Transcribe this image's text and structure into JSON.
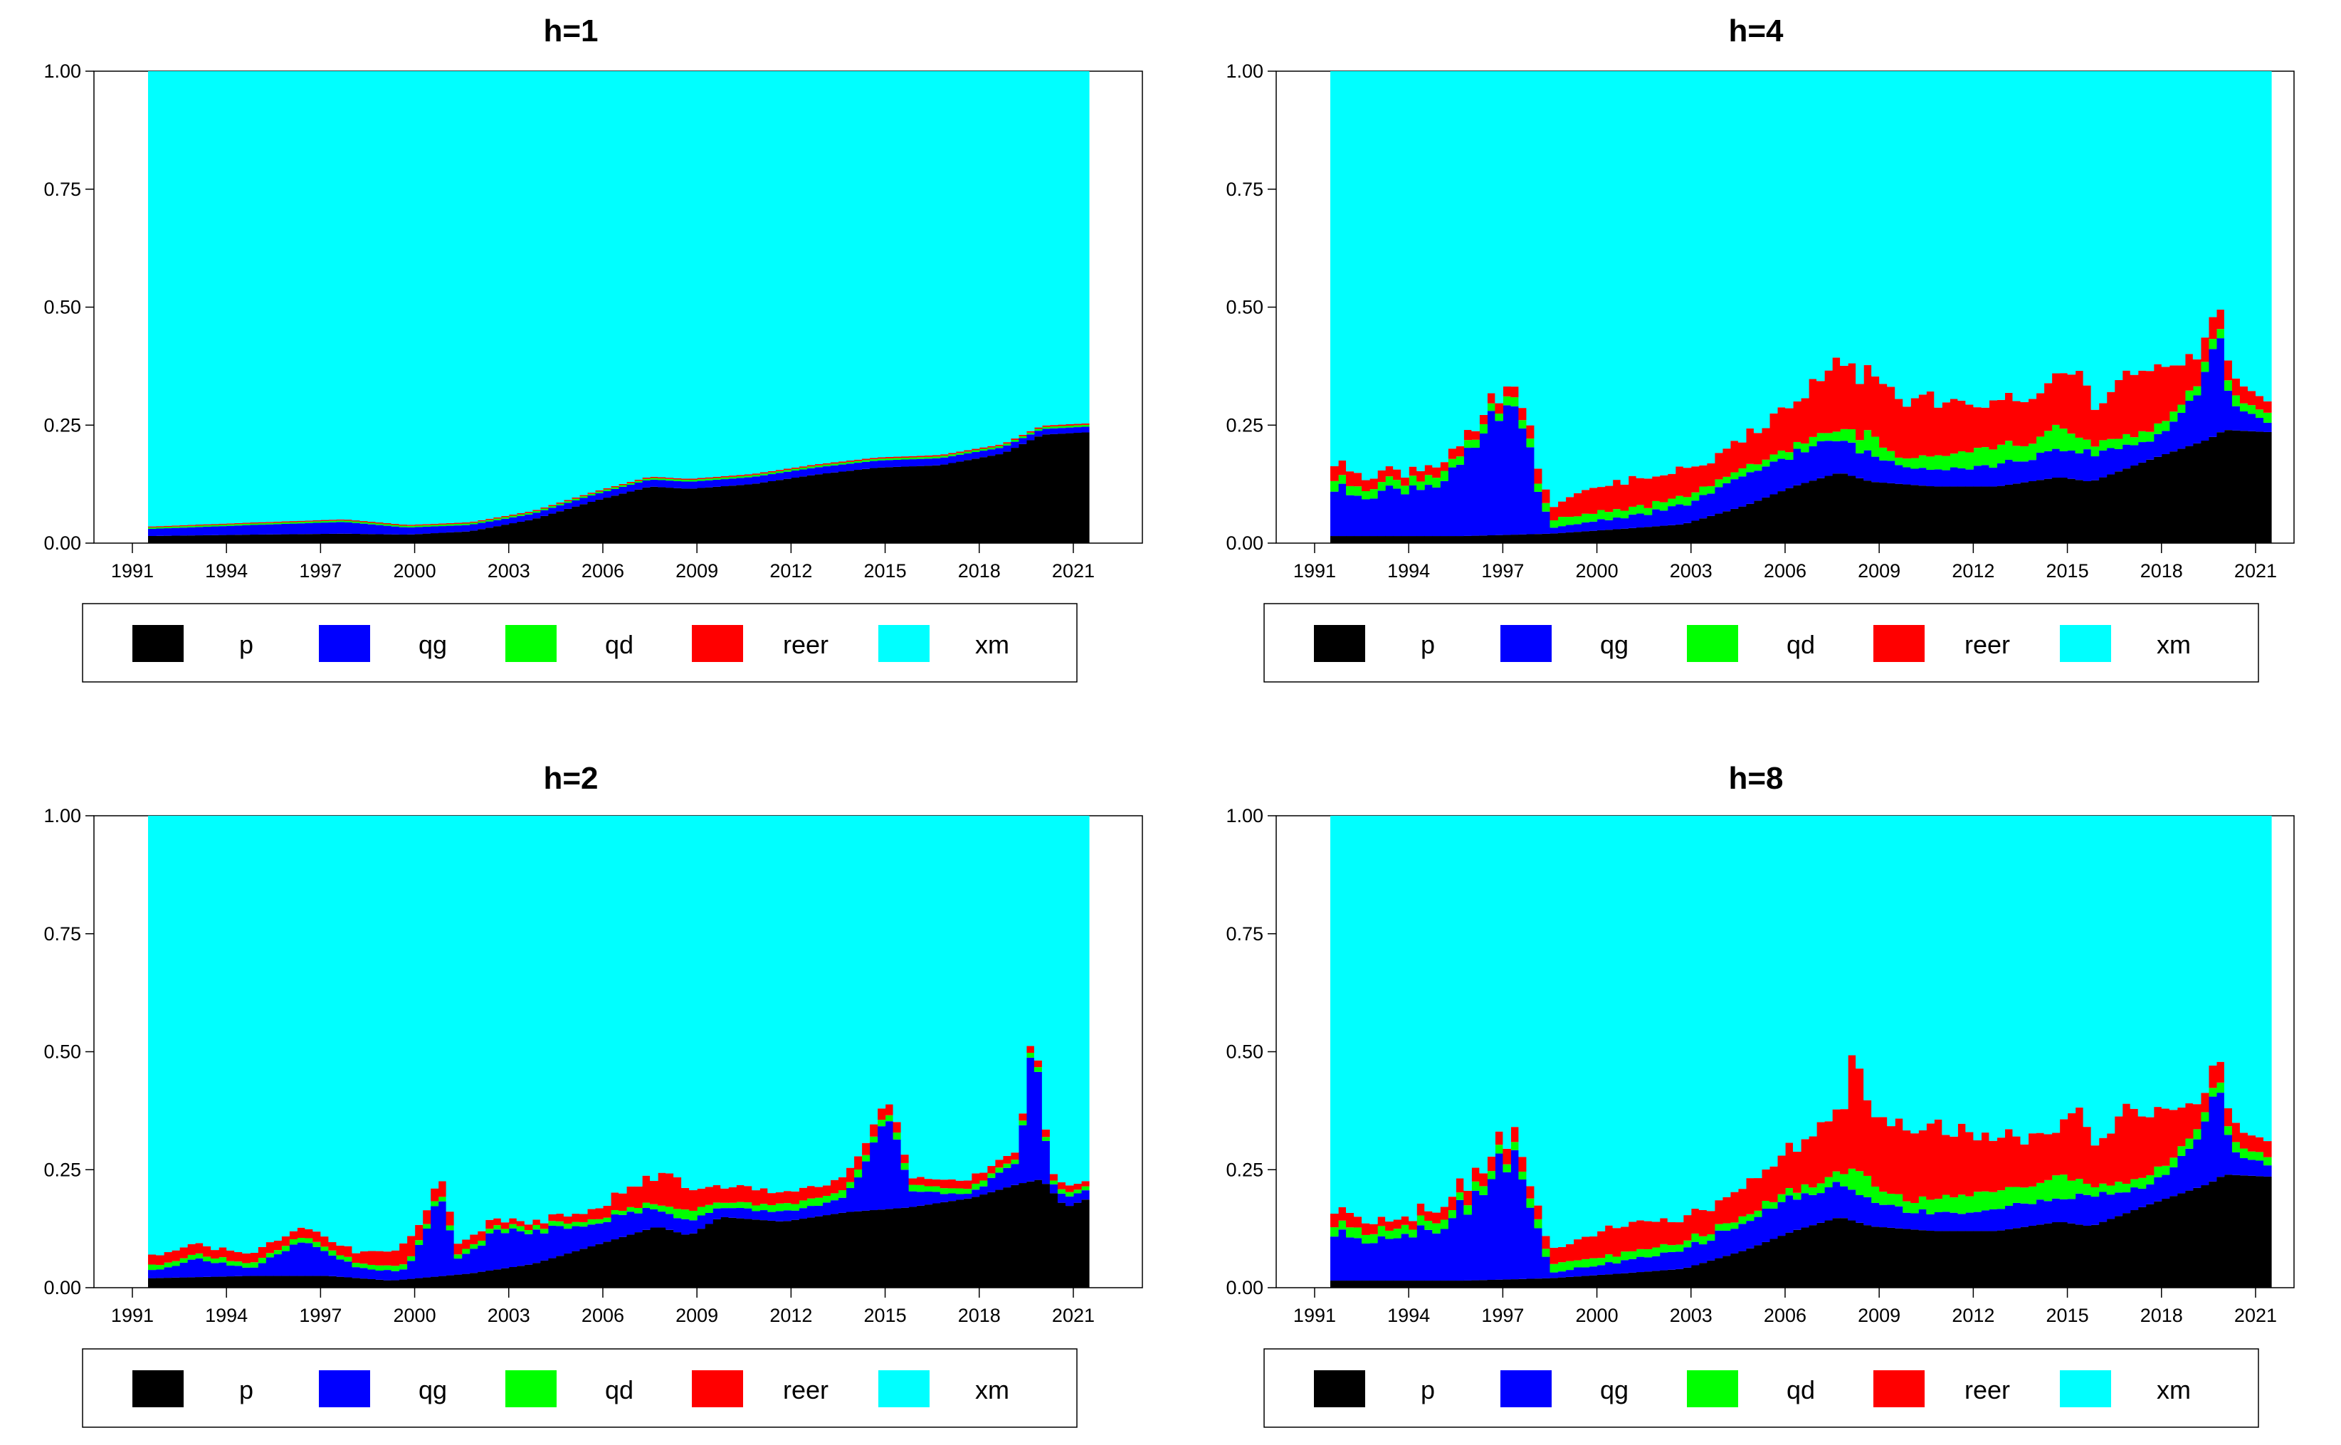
{
  "chart_data": [
    {
      "type": "area",
      "title": "h=1",
      "ylim": [
        0,
        1
      ],
      "yticks": [
        "0.00",
        "0.25",
        "0.50",
        "0.75",
        "1.00"
      ],
      "xticks": [
        "1991",
        "1994",
        "1997",
        "2000",
        "2003",
        "2006",
        "2009",
        "2012",
        "2015",
        "2018",
        "2021"
      ],
      "xrange": [
        1991.75,
        2021.75
      ],
      "series": [
        {
          "name": "p",
          "color": "#000000",
          "x": [
            1991.75,
            1995,
            1998,
            2000,
            2002,
            2004,
            2006,
            2007.75,
            2009,
            2011,
            2013,
            2015,
            2017,
            2019,
            2020.25,
            2021.75
          ],
          "values": [
            0.015,
            0.018,
            0.02,
            0.018,
            0.025,
            0.05,
            0.09,
            0.12,
            0.115,
            0.125,
            0.145,
            0.16,
            0.165,
            0.19,
            0.23,
            0.235
          ]
        },
        {
          "name": "qg",
          "color": "#0000FF",
          "x": [
            1991.75,
            1998,
            2000,
            2004,
            2007.75,
            2012,
            2015,
            2017,
            2020.25,
            2021.75
          ],
          "values": [
            0.015,
            0.025,
            0.015,
            0.012,
            0.015,
            0.015,
            0.015,
            0.015,
            0.012,
            0.012
          ]
        },
        {
          "name": "qd",
          "color": "#00FF00",
          "x": [
            1991.75,
            2021.75
          ],
          "values": [
            0.003,
            0.004
          ]
        },
        {
          "name": "reer",
          "color": "#FF0000",
          "x": [
            1991.75,
            2021.75
          ],
          "values": [
            0.002,
            0.003
          ]
        },
        {
          "name": "xm",
          "color": "#00FFFF"
        }
      ]
    },
    {
      "type": "area",
      "title": "h=4",
      "ylim": [
        0,
        1
      ],
      "yticks": [
        "0.00",
        "0.25",
        "0.50",
        "0.75",
        "1.00"
      ],
      "xticks": [
        "1991",
        "1994",
        "1997",
        "2000",
        "2003",
        "2006",
        "2009",
        "2012",
        "2015",
        "2018",
        "2021"
      ],
      "xrange": [
        1991.75,
        2021.75
      ],
      "series": [
        {
          "name": "p",
          "color": "#000000",
          "x": [
            1991.75,
            1996,
            1998.75,
            2001,
            2003,
            2005,
            2006.5,
            2008,
            2009,
            2011,
            2013,
            2015,
            2016,
            2018,
            2019.75,
            2020.25,
            2021.75
          ],
          "values": [
            0.015,
            0.015,
            0.02,
            0.03,
            0.04,
            0.08,
            0.12,
            0.15,
            0.13,
            0.12,
            0.12,
            0.14,
            0.13,
            0.18,
            0.22,
            0.24,
            0.235
          ]
        },
        {
          "name": "qg",
          "color": "#0000FF",
          "x": [
            1991.75,
            1993,
            1995,
            1996.5,
            1997.25,
            1998,
            1998.75,
            2000,
            2002,
            2004,
            2006,
            2008,
            2010,
            2012,
            2014,
            2016,
            2018,
            2019.5,
            2020,
            2020.5,
            2021.75
          ],
          "values": [
            0.1,
            0.09,
            0.11,
            0.18,
            0.28,
            0.2,
            0.01,
            0.02,
            0.03,
            0.05,
            0.07,
            0.07,
            0.04,
            0.04,
            0.05,
            0.06,
            0.04,
            0.1,
            0.22,
            0.05,
            0.02
          ]
        },
        {
          "name": "qd",
          "color": "#00FF00",
          "x": [
            1991.75,
            2006,
            2008,
            2009,
            2010,
            2011,
            2012,
            2013,
            2014,
            2015,
            2016,
            2018,
            2021.75
          ],
          "values": [
            0.02,
            0.015,
            0.02,
            0.04,
            0.015,
            0.03,
            0.035,
            0.04,
            0.03,
            0.05,
            0.02,
            0.02,
            0.02
          ]
        },
        {
          "name": "reer",
          "color": "#FF0000",
          "x": [
            1991.75,
            1994,
            1997,
            1998.75,
            2000,
            2002,
            2004,
            2006,
            2007.5,
            2008,
            2009,
            2011,
            2013,
            2015,
            2015.75,
            2016.25,
            2017,
            2018,
            2019.5,
            2020,
            2021.75
          ],
          "values": [
            0.03,
            0.02,
            0.02,
            0.03,
            0.05,
            0.06,
            0.05,
            0.08,
            0.12,
            0.15,
            0.12,
            0.12,
            0.09,
            0.1,
            0.15,
            0.07,
            0.16,
            0.13,
            0.05,
            0.04,
            0.025
          ]
        },
        {
          "name": "xm",
          "color": "#00FFFF"
        }
      ]
    },
    {
      "type": "area",
      "title": "h=2",
      "ylim": [
        0,
        1
      ],
      "yticks": [
        "0.00",
        "0.25",
        "0.50",
        "0.75",
        "1.00"
      ],
      "xticks": [
        "1991",
        "1994",
        "1997",
        "2000",
        "2003",
        "2006",
        "2009",
        "2012",
        "2015",
        "2018",
        "2021"
      ],
      "xrange": [
        1991.75,
        2021.75
      ],
      "series": [
        {
          "name": "p",
          "color": "#000000",
          "x": [
            1991.75,
            1995,
            1997.5,
            1999.5,
            2002,
            2004,
            2006,
            2008,
            2009,
            2010,
            2012,
            2014,
            2016,
            2018,
            2019.5,
            2020.25,
            2021,
            2021.75
          ],
          "values": [
            0.02,
            0.025,
            0.025,
            0.015,
            0.03,
            0.05,
            0.09,
            0.13,
            0.11,
            0.15,
            0.14,
            0.16,
            0.17,
            0.19,
            0.22,
            0.23,
            0.17,
            0.19
          ]
        },
        {
          "name": "qg",
          "color": "#0000FF",
          "x": [
            1991.75,
            1993.5,
            1995,
            1996.75,
            1998.5,
            2000,
            2001.25,
            2001.5,
            2002,
            2003,
            2004,
            2006,
            2008,
            2010,
            2012,
            2014,
            2015.5,
            2016,
            2018,
            2019.5,
            2020,
            2020.5,
            2021.75
          ],
          "values": [
            0.015,
            0.04,
            0.015,
            0.07,
            0.02,
            0.02,
            0.19,
            0.03,
            0.05,
            0.08,
            0.07,
            0.05,
            0.04,
            0.02,
            0.02,
            0.03,
            0.2,
            0.03,
            0.01,
            0.05,
            0.3,
            0.02,
            0.02
          ]
        },
        {
          "name": "qd",
          "color": "#00FF00",
          "x": [
            1991.75,
            2008,
            2009,
            2010,
            2012,
            2014,
            2021.75
          ],
          "values": [
            0.01,
            0.01,
            0.025,
            0.01,
            0.015,
            0.015,
            0.008
          ]
        },
        {
          "name": "reer",
          "color": "#FF0000",
          "x": [
            1991.75,
            1998,
            2000,
            2002,
            2004,
            2006,
            2007.5,
            2008.5,
            2009,
            2011,
            2013,
            2015,
            2016,
            2018,
            2019.5,
            2021.75
          ],
          "values": [
            0.02,
            0.02,
            0.04,
            0.02,
            0.01,
            0.02,
            0.05,
            0.07,
            0.04,
            0.03,
            0.025,
            0.03,
            0.015,
            0.02,
            0.015,
            0.012
          ]
        },
        {
          "name": "xm",
          "color": "#00FFFF"
        }
      ]
    },
    {
      "type": "area",
      "title": "h=8",
      "ylim": [
        0,
        1
      ],
      "yticks": [
        "0.00",
        "0.25",
        "0.50",
        "0.75",
        "1.00"
      ],
      "xticks": [
        "1991",
        "1994",
        "1997",
        "2000",
        "2003",
        "2006",
        "2009",
        "2012",
        "2015",
        "2018",
        "2021"
      ],
      "xrange": [
        1991.75,
        2021.75
      ],
      "series": [
        {
          "name": "p",
          "color": "#000000",
          "x": [
            1991.75,
            1996,
            1998.75,
            2001,
            2003,
            2005,
            2006.5,
            2008,
            2009,
            2011,
            2013,
            2015,
            2016,
            2018,
            2019.75,
            2020.25,
            2021.75
          ],
          "values": [
            0.015,
            0.015,
            0.02,
            0.03,
            0.04,
            0.08,
            0.12,
            0.15,
            0.13,
            0.12,
            0.12,
            0.14,
            0.13,
            0.18,
            0.22,
            0.24,
            0.235
          ]
        },
        {
          "name": "qg",
          "color": "#0000FF",
          "x": [
            1991.75,
            1993,
            1995,
            1996.5,
            1997.25,
            1998,
            1998.75,
            2000,
            2002,
            2004,
            2006,
            2008,
            2010,
            2012,
            2014,
            2016,
            2018,
            2019.5,
            2020,
            2020.5,
            2021.75
          ],
          "values": [
            0.1,
            0.09,
            0.11,
            0.18,
            0.28,
            0.2,
            0.01,
            0.02,
            0.03,
            0.05,
            0.07,
            0.07,
            0.04,
            0.04,
            0.05,
            0.06,
            0.04,
            0.1,
            0.22,
            0.05,
            0.02
          ]
        },
        {
          "name": "qd",
          "color": "#00FF00",
          "x": [
            1991.75,
            2006,
            2008,
            2008.5,
            2009,
            2010,
            2011,
            2012,
            2013,
            2014,
            2015,
            2016,
            2018,
            2021.75
          ],
          "values": [
            0.02,
            0.015,
            0.02,
            0.05,
            0.04,
            0.02,
            0.03,
            0.04,
            0.04,
            0.035,
            0.05,
            0.02,
            0.02,
            0.02
          ]
        },
        {
          "name": "reer",
          "color": "#FF0000",
          "x": [
            1991.75,
            1994,
            1997,
            1998.75,
            2000,
            2002,
            2004,
            2006,
            2007.5,
            2008.25,
            2008.5,
            2009,
            2011,
            2013,
            2015,
            2015.75,
            2016.25,
            2017,
            2018,
            2019.5,
            2020,
            2021.75
          ],
          "values": [
            0.03,
            0.02,
            0.03,
            0.03,
            0.05,
            0.06,
            0.05,
            0.08,
            0.12,
            0.16,
            0.28,
            0.15,
            0.15,
            0.11,
            0.1,
            0.15,
            0.07,
            0.18,
            0.13,
            0.05,
            0.04,
            0.03
          ]
        },
        {
          "name": "xm",
          "color": "#00FFFF"
        }
      ]
    }
  ]
}
